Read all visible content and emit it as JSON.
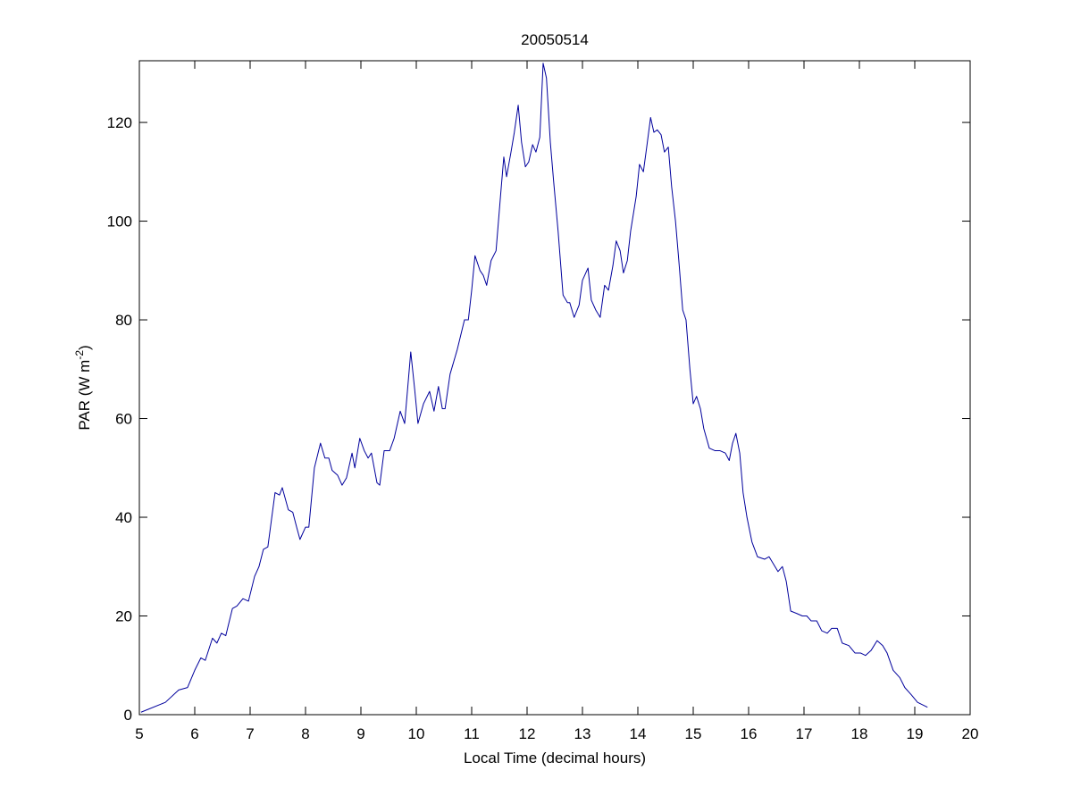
{
  "chart_data": {
    "type": "line",
    "title": "20050514",
    "xlabel": "Local Time (decimal hours)",
    "ylabel": {
      "text": "PAR (W m",
      "superscript": "-2",
      "suffix": ")"
    },
    "xlim": [
      5,
      20
    ],
    "xticks": [
      5,
      6,
      7,
      8,
      9,
      10,
      11,
      12,
      13,
      14,
      15,
      16,
      17,
      18,
      19,
      20
    ],
    "ylim": [
      0,
      132.5
    ],
    "yticks": [
      0,
      20,
      40,
      60,
      80,
      100,
      120
    ],
    "grid": false,
    "series": [
      {
        "name": "PAR",
        "color": "#00009c",
        "x": [
          5.03,
          5.47,
          5.71,
          5.87,
          6.0,
          6.11,
          6.19,
          6.32,
          6.4,
          6.48,
          6.56,
          6.68,
          6.76,
          6.87,
          6.97,
          7.08,
          7.16,
          7.24,
          7.32,
          7.45,
          7.53,
          7.58,
          7.69,
          7.77,
          7.84,
          7.9,
          8.0,
          8.06,
          8.16,
          8.27,
          8.35,
          8.42,
          8.48,
          8.58,
          8.66,
          8.74,
          8.84,
          8.89,
          8.98,
          9.06,
          9.13,
          9.19,
          9.29,
          9.34,
          9.42,
          9.52,
          9.6,
          9.71,
          9.79,
          9.9,
          9.97,
          10.03,
          10.13,
          10.24,
          10.32,
          10.4,
          10.47,
          10.52,
          10.61,
          10.74,
          10.87,
          10.94,
          11.0,
          11.06,
          11.15,
          11.21,
          11.27,
          11.35,
          11.44,
          11.52,
          11.58,
          11.63,
          11.71,
          11.77,
          11.84,
          11.9,
          11.97,
          12.03,
          12.1,
          12.16,
          12.23,
          12.29,
          12.35,
          12.42,
          12.48,
          12.56,
          12.65,
          12.73,
          12.77,
          12.85,
          12.94,
          13.0,
          13.1,
          13.16,
          13.24,
          13.32,
          13.4,
          13.47,
          13.55,
          13.61,
          13.68,
          13.74,
          13.81,
          13.87,
          13.97,
          14.03,
          14.1,
          14.16,
          14.23,
          14.29,
          14.35,
          14.42,
          14.48,
          14.55,
          14.61,
          14.68,
          14.74,
          14.81,
          14.87,
          14.94,
          15.0,
          15.06,
          15.13,
          15.19,
          15.29,
          15.39,
          15.48,
          15.58,
          15.65,
          15.71,
          15.77,
          15.84,
          15.9,
          15.97,
          16.06,
          16.16,
          16.29,
          16.37,
          16.45,
          16.53,
          16.61,
          16.68,
          16.76,
          16.87,
          16.97,
          17.05,
          17.13,
          17.23,
          17.32,
          17.42,
          17.5,
          17.6,
          17.69,
          17.81,
          17.92,
          18.02,
          18.11,
          18.21,
          18.32,
          18.42,
          18.5,
          18.61,
          18.73,
          18.82,
          18.94,
          19.05,
          19.23
        ],
        "values": [
          0.5,
          2.5,
          5,
          5.5,
          9,
          11.5,
          11,
          15.5,
          14.5,
          16.5,
          16,
          21.5,
          22,
          23.5,
          23,
          28,
          30,
          33.5,
          34,
          45,
          44.5,
          46,
          41.5,
          41,
          38,
          35.5,
          38,
          38,
          50,
          55,
          52,
          52,
          49.5,
          48.5,
          46.5,
          48,
          53,
          50,
          56,
          53.5,
          52,
          53,
          47,
          46.5,
          53.5,
          53.5,
          56,
          61.5,
          59,
          73.5,
          66,
          59,
          63,
          65.5,
          61.5,
          66.5,
          62,
          62,
          69,
          74,
          80,
          80,
          86,
          93,
          90,
          89,
          87,
          92,
          94,
          105,
          113,
          109,
          114,
          118,
          123.5,
          116,
          111,
          112,
          115.5,
          114,
          117,
          132,
          129,
          116,
          108,
          98,
          85,
          83.5,
          83.5,
          80.5,
          83,
          88,
          90.5,
          84,
          82,
          80.5,
          87,
          86,
          91,
          96,
          94,
          89.5,
          92,
          98,
          105,
          111.5,
          110,
          115,
          121,
          118,
          118.5,
          117.5,
          114,
          115,
          107,
          100,
          92,
          82,
          80,
          70,
          63,
          64.5,
          62,
          58,
          54,
          53.5,
          53.5,
          53,
          51.5,
          55,
          57,
          53,
          45,
          40,
          35,
          32,
          31.5,
          32,
          30.5,
          29,
          30,
          27,
          21,
          20.5,
          20,
          20,
          19,
          19,
          17,
          16.5,
          17.5,
          17.5,
          14.5,
          14,
          12.5,
          12.5,
          12,
          13,
          15,
          14,
          12.5,
          9,
          7.5,
          5.5,
          4,
          2.5,
          1.5
        ]
      }
    ]
  }
}
